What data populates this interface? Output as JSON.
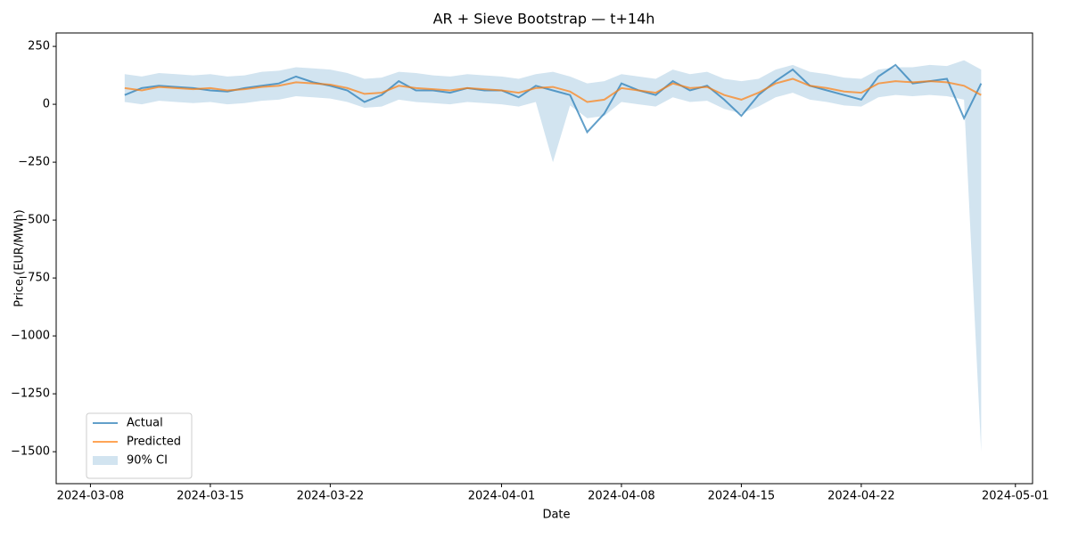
{
  "chart_data": {
    "type": "line",
    "title": "AR + Sieve Bootstrap — t+14h",
    "x_label": "Date",
    "y_label": "Price (EUR/MWh)",
    "x": [
      "2024-03-10",
      "2024-03-11",
      "2024-03-12",
      "2024-03-13",
      "2024-03-14",
      "2024-03-15",
      "2024-03-16",
      "2024-03-17",
      "2024-03-18",
      "2024-03-19",
      "2024-03-20",
      "2024-03-21",
      "2024-03-22",
      "2024-03-23",
      "2024-03-24",
      "2024-03-25",
      "2024-03-26",
      "2024-03-27",
      "2024-03-28",
      "2024-03-29",
      "2024-03-30",
      "2024-03-31",
      "2024-04-01",
      "2024-04-02",
      "2024-04-03",
      "2024-04-04",
      "2024-04-05",
      "2024-04-06",
      "2024-04-07",
      "2024-04-08",
      "2024-04-09",
      "2024-04-10",
      "2024-04-11",
      "2024-04-12",
      "2024-04-13",
      "2024-04-14",
      "2024-04-15",
      "2024-04-16",
      "2024-04-17",
      "2024-04-18",
      "2024-04-19",
      "2024-04-20",
      "2024-04-21",
      "2024-04-22",
      "2024-04-23",
      "2024-04-24",
      "2024-04-25",
      "2024-04-26",
      "2024-04-27",
      "2024-04-28",
      "2024-04-29"
    ],
    "series": [
      {
        "name": "Actual",
        "color": "#1f77b4",
        "values": [
          40,
          70,
          80,
          75,
          70,
          60,
          55,
          70,
          80,
          90,
          120,
          95,
          80,
          60,
          10,
          40,
          100,
          60,
          60,
          50,
          70,
          60,
          60,
          30,
          80,
          60,
          40,
          -120,
          -40,
          90,
          60,
          40,
          100,
          60,
          80,
          20,
          -50,
          40,
          100,
          150,
          80,
          60,
          40,
          20,
          120,
          170,
          90,
          100,
          110,
          -60,
          90
        ]
      },
      {
        "name": "Predicted",
        "color": "#ff7f0e",
        "values": [
          70,
          60,
          75,
          70,
          65,
          70,
          60,
          65,
          75,
          80,
          95,
          90,
          85,
          70,
          45,
          50,
          80,
          70,
          65,
          60,
          70,
          65,
          60,
          50,
          70,
          75,
          55,
          10,
          20,
          70,
          60,
          50,
          90,
          70,
          75,
          40,
          20,
          50,
          90,
          110,
          80,
          70,
          55,
          50,
          90,
          100,
          95,
          100,
          95,
          80,
          40
        ]
      }
    ],
    "bands": [
      {
        "name": "90% CI",
        "color": "#1f77b4",
        "upper": [
          130,
          120,
          135,
          130,
          125,
          130,
          120,
          125,
          140,
          145,
          160,
          155,
          150,
          135,
          110,
          115,
          140,
          135,
          125,
          120,
          130,
          125,
          120,
          110,
          130,
          140,
          120,
          90,
          100,
          130,
          120,
          110,
          150,
          130,
          140,
          110,
          100,
          110,
          150,
          170,
          140,
          130,
          115,
          110,
          150,
          160,
          160,
          170,
          165,
          190,
          150
        ],
        "lower": [
          10,
          0,
          15,
          10,
          5,
          10,
          0,
          5,
          15,
          20,
          35,
          30,
          25,
          10,
          -15,
          -10,
          20,
          10,
          5,
          0,
          10,
          5,
          0,
          -10,
          10,
          -250,
          -5,
          -60,
          -50,
          10,
          0,
          -10,
          30,
          10,
          15,
          -20,
          -40,
          -10,
          30,
          50,
          20,
          10,
          -5,
          -10,
          30,
          40,
          35,
          40,
          35,
          20,
          -1500
        ]
      }
    ],
    "xlim": [
      "2024-03-06",
      "2024-05-02"
    ],
    "xticks": [
      "2024-03-08",
      "2024-03-15",
      "2024-03-22",
      "2024-04-01",
      "2024-04-08",
      "2024-04-15",
      "2024-04-22",
      "2024-05-01"
    ],
    "ylim": [
      -1638,
      308
    ],
    "yticks": [
      {
        "value": -1500,
        "label": "−1500"
      },
      {
        "value": -1250,
        "label": "−1250"
      },
      {
        "value": -1000,
        "label": "−1000"
      },
      {
        "value": -750,
        "label": "−750"
      },
      {
        "value": -500,
        "label": "−500"
      },
      {
        "value": -250,
        "label": "−250"
      },
      0,
      250
    ],
    "legend": "lower left"
  }
}
